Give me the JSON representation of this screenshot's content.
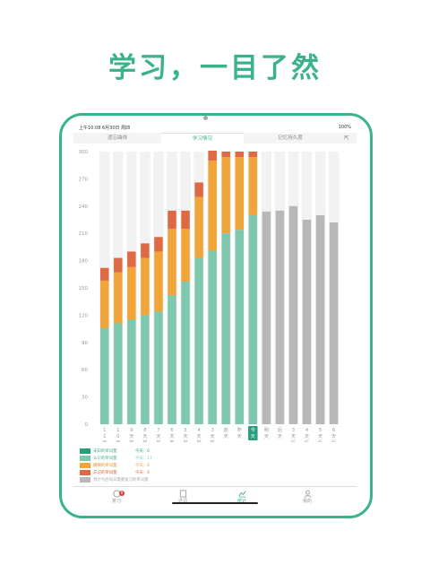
{
  "headline": "学习，一目了然",
  "status": {
    "time_date": "上午10:08  6月30日 周四",
    "battery": "100%"
  },
  "tabs": [
    {
      "label": "遗忘曲线",
      "active": false
    },
    {
      "label": "学习情况",
      "active": true
    },
    {
      "label": "记忆持久度",
      "active": false
    }
  ],
  "share_icon": "share-icon",
  "chart_data": {
    "type": "bar",
    "stacked": true,
    "ylim": [
      0,
      300
    ],
    "yticks": [
      0,
      30,
      60,
      90,
      120,
      150,
      180,
      210,
      240,
      270,
      300
    ],
    "grid": false,
    "background_columns": true,
    "categories": [
      {
        "label": "11天前",
        "today": false
      },
      {
        "label": "10天前",
        "today": false
      },
      {
        "label": "9天前",
        "today": false
      },
      {
        "label": "8天前",
        "today": false
      },
      {
        "label": "7天前",
        "today": false
      },
      {
        "label": "6天前",
        "today": false
      },
      {
        "label": "5天前",
        "today": false
      },
      {
        "label": "4天前",
        "today": false
      },
      {
        "label": "3天前",
        "today": false
      },
      {
        "label": "前天",
        "today": false
      },
      {
        "label": "昨天",
        "today": false
      },
      {
        "label": "今天",
        "today": true
      },
      {
        "label": "明天",
        "today": false
      },
      {
        "label": "后天",
        "today": false
      },
      {
        "label": "3天后",
        "today": false
      },
      {
        "label": "4天后",
        "today": false
      },
      {
        "label": "5天后",
        "today": false
      },
      {
        "label": "6天后",
        "today": false
      }
    ],
    "series": [
      {
        "name": "认识的单词量",
        "color": "#7ec8ad",
        "values": [
          106,
          111,
          115,
          120,
          124,
          142,
          157,
          183,
          191,
          210,
          214,
          230,
          null,
          null,
          null,
          null,
          null,
          null
        ]
      },
      {
        "name": "模糊的单词量",
        "color": "#f0a43a",
        "values": [
          52,
          56,
          58,
          63,
          66,
          73,
          58,
          67,
          99,
          84,
          80,
          64,
          null,
          null,
          null,
          null,
          null,
          null
        ]
      },
      {
        "name": "忘记的单词量",
        "color": "#dd6a44",
        "values": [
          14,
          16,
          17,
          16,
          16,
          20,
          20,
          16,
          11,
          6,
          6,
          6,
          null,
          null,
          null,
          null,
          null,
          null
        ]
      },
      {
        "name": "预计今后每日需要复习的单词量",
        "color": "#b8b8b8",
        "values": [
          null,
          null,
          null,
          null,
          null,
          null,
          null,
          null,
          null,
          null,
          null,
          null,
          234,
          235,
          240,
          225,
          230,
          222
        ]
      }
    ]
  },
  "legend": [
    {
      "label": "未知的单词量",
      "today": "今天：0",
      "color": "#2a9d7c"
    },
    {
      "label": "认识的单词量",
      "today": "今天：17",
      "color": "#7ec8ad"
    },
    {
      "label": "模糊的单词量",
      "today": "今天：8",
      "color": "#f0a43a"
    },
    {
      "label": "忘记的单词量",
      "today": "今天：4",
      "color": "#dd6a44"
    },
    {
      "label": "预计今后每日需要复习的单词量",
      "today": "",
      "color": "#b8b8b8"
    }
  ],
  "bottom_nav": [
    {
      "label": "复习",
      "icon": "review-icon",
      "active": false,
      "badge": "8"
    },
    {
      "label": "选词",
      "icon": "book-icon",
      "active": false
    },
    {
      "label": "统计",
      "icon": "chart-icon",
      "active": true
    },
    {
      "label": "我的",
      "icon": "user-icon",
      "active": false
    }
  ]
}
